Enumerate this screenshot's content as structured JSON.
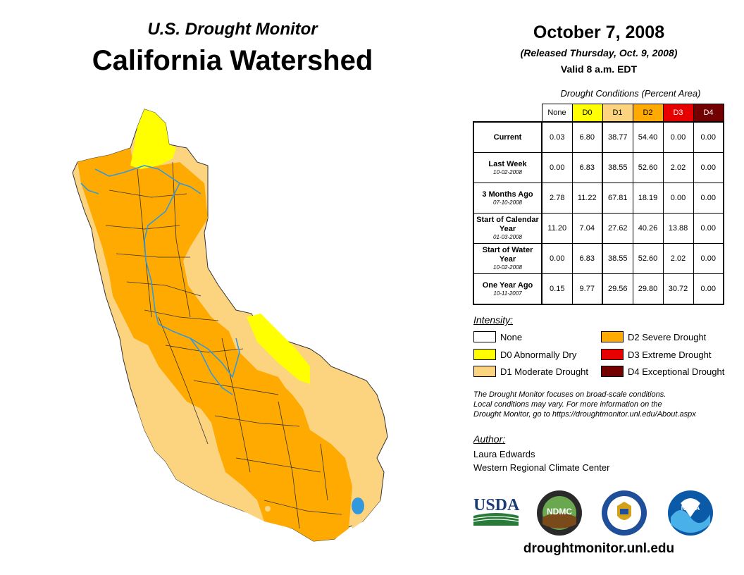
{
  "header": {
    "subtitle": "U.S. Drought Monitor",
    "title": "California Watershed",
    "date": "October 7, 2008",
    "released": "(Released Thursday, Oct. 9, 2008)",
    "valid": "Valid 8 a.m. EDT"
  },
  "conditions": {
    "title": "Drought Conditions (Percent Area)",
    "columns": [
      "None",
      "D0",
      "D1",
      "D2",
      "D3",
      "D4"
    ],
    "column_colors": [
      "#ffffff",
      "#ffff00",
      "#fcd37f",
      "#ffaa00",
      "#e60000",
      "#730000"
    ],
    "column_text_colors": [
      "#000000",
      "#000000",
      "#000000",
      "#000000",
      "#ffffff",
      "#ffffff"
    ],
    "rows": [
      {
        "label": "Current",
        "sub": "",
        "values": [
          "0.03",
          "6.80",
          "38.77",
          "54.40",
          "0.00",
          "0.00"
        ]
      },
      {
        "label": "Last Week",
        "sub": "10-02-2008",
        "values": [
          "0.00",
          "6.83",
          "38.55",
          "52.60",
          "2.02",
          "0.00"
        ]
      },
      {
        "label": "3 Months Ago",
        "sub": "07-10-2008",
        "values": [
          "2.78",
          "11.22",
          "67.81",
          "18.19",
          "0.00",
          "0.00"
        ]
      },
      {
        "label": "Start of Calendar Year",
        "sub": "01-03-2008",
        "values": [
          "11.20",
          "7.04",
          "27.62",
          "40.26",
          "13.88",
          "0.00"
        ]
      },
      {
        "label": "Start of Water Year",
        "sub": "10-02-2008",
        "values": [
          "0.00",
          "6.83",
          "38.55",
          "52.60",
          "2.02",
          "0.00"
        ]
      },
      {
        "label": "One Year Ago",
        "sub": "10-11-2007",
        "values": [
          "0.15",
          "9.77",
          "29.56",
          "29.80",
          "30.72",
          "0.00"
        ]
      }
    ]
  },
  "legend": {
    "title": "Intensity:",
    "items": [
      {
        "label": "None",
        "color": "#ffffff"
      },
      {
        "label": "D0 Abnormally Dry",
        "color": "#ffff00"
      },
      {
        "label": "D1 Moderate Drought",
        "color": "#fcd37f"
      },
      {
        "label": "D2 Severe Drought",
        "color": "#ffaa00"
      },
      {
        "label": "D3 Extreme Drought",
        "color": "#e60000"
      },
      {
        "label": "D4 Exceptional Drought",
        "color": "#730000"
      }
    ]
  },
  "note": {
    "line1": "The Drought Monitor focuses on broad-scale conditions.",
    "line2": "Local conditions may vary. For more information on the",
    "line3": "Drought Monitor, go to https://droughtmonitor.unl.edu/About.aspx"
  },
  "author": {
    "heading": "Author:",
    "name": "Laura Edwards",
    "org": "Western Regional Climate Center"
  },
  "logos": {
    "usda": "USDA",
    "ndmc": "NDMC",
    "noaa": "NOAA"
  },
  "website": "droughtmonitor.unl.edu",
  "map_colors": {
    "d0": "#ffff00",
    "d1": "#fcd37f",
    "d2": "#ffaa00",
    "river": "#3399dd",
    "border": "#333333"
  }
}
